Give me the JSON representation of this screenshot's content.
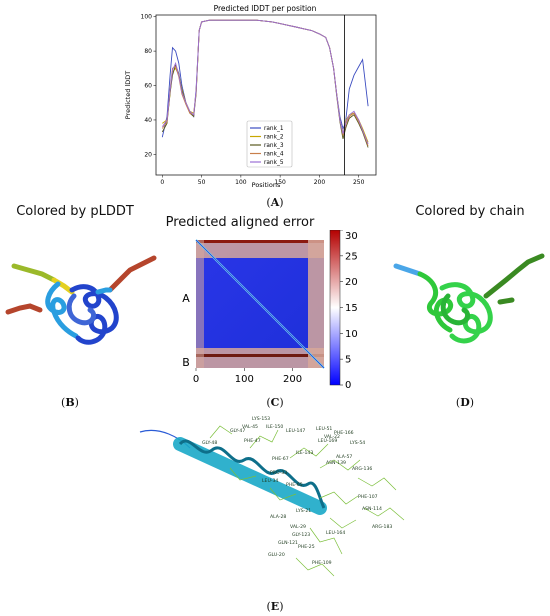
{
  "panels": {
    "a": {
      "caption": "A"
    },
    "b": {
      "title": "Colored by pLDDT",
      "caption": "B"
    },
    "c": {
      "title": "Predicted aligned error",
      "caption": "C"
    },
    "d": {
      "title": "Colored by chain",
      "caption": "D"
    },
    "e": {
      "caption": "E"
    }
  },
  "chart_data": [
    {
      "type": "line",
      "title": "Predicted lDDT per position",
      "xlabel": "Positions",
      "ylabel": "Predicted lDDT",
      "xlim": [
        -8,
        272
      ],
      "ylim": [
        8,
        101
      ],
      "xticks": [
        0,
        50,
        100,
        150,
        200,
        250
      ],
      "yticks": [
        20,
        40,
        60,
        80,
        100
      ],
      "legend": "bottom-center",
      "vline_x": 232,
      "series": [
        {
          "name": "rank_1",
          "color": "#3b4cc0",
          "points": [
            [
              0,
              30
            ],
            [
              6,
              42
            ],
            [
              10,
              66
            ],
            [
              13,
              82
            ],
            [
              17,
              80
            ],
            [
              21,
              73
            ],
            [
              25,
              60
            ],
            [
              30,
              50
            ],
            [
              35,
              45
            ],
            [
              40,
              42
            ],
            [
              43,
              58
            ],
            [
              47,
              92
            ],
            [
              50,
              97
            ],
            [
              60,
              98
            ],
            [
              80,
              98
            ],
            [
              100,
              98
            ],
            [
              120,
              98
            ],
            [
              140,
              97
            ],
            [
              150,
              96
            ],
            [
              160,
              95
            ],
            [
              170,
              94
            ],
            [
              180,
              93
            ],
            [
              190,
              92
            ],
            [
              200,
              90
            ],
            [
              208,
              88
            ],
            [
              213,
              82
            ],
            [
              218,
              70
            ],
            [
              222,
              55
            ],
            [
              226,
              42
            ],
            [
              230,
              35
            ],
            [
              233,
              38
            ],
            [
              238,
              58
            ],
            [
              244,
              66
            ],
            [
              250,
              71
            ],
            [
              255,
              75
            ],
            [
              262,
              48
            ]
          ]
        },
        {
          "name": "rank_2",
          "color": "#c8a800",
          "points": [
            [
              0,
              38
            ],
            [
              6,
              40
            ],
            [
              10,
              55
            ],
            [
              13,
              68
            ],
            [
              17,
              70
            ],
            [
              21,
              66
            ],
            [
              25,
              58
            ],
            [
              30,
              50
            ],
            [
              35,
              45
            ],
            [
              40,
              44
            ],
            [
              43,
              56
            ],
            [
              47,
              92
            ],
            [
              50,
              97
            ],
            [
              60,
              98
            ],
            [
              80,
              98
            ],
            [
              100,
              98
            ],
            [
              120,
              98
            ],
            [
              140,
              97
            ],
            [
              150,
              96
            ],
            [
              160,
              95
            ],
            [
              170,
              94
            ],
            [
              180,
              93
            ],
            [
              190,
              92
            ],
            [
              200,
              90
            ],
            [
              208,
              88
            ],
            [
              213,
              82
            ],
            [
              218,
              70
            ],
            [
              222,
              55
            ],
            [
              226,
              40
            ],
            [
              230,
              32
            ],
            [
              234,
              40
            ],
            [
              238,
              43
            ],
            [
              244,
              44
            ],
            [
              250,
              40
            ],
            [
              255,
              35
            ],
            [
              262,
              27
            ]
          ]
        },
        {
          "name": "rank_3",
          "color": "#5a5a1f",
          "points": [
            [
              0,
              33
            ],
            [
              6,
              38
            ],
            [
              10,
              56
            ],
            [
              13,
              66
            ],
            [
              17,
              72
            ],
            [
              21,
              67
            ],
            [
              25,
              57
            ],
            [
              30,
              50
            ],
            [
              35,
              44
            ],
            [
              40,
              42
            ],
            [
              43,
              55
            ],
            [
              47,
              92
            ],
            [
              50,
              97
            ],
            [
              60,
              98
            ],
            [
              80,
              98
            ],
            [
              100,
              98
            ],
            [
              120,
              98
            ],
            [
              140,
              97
            ],
            [
              150,
              96
            ],
            [
              160,
              95
            ],
            [
              170,
              94
            ],
            [
              180,
              93
            ],
            [
              190,
              92
            ],
            [
              200,
              90
            ],
            [
              208,
              88
            ],
            [
              213,
              82
            ],
            [
              218,
              70
            ],
            [
              222,
              54
            ],
            [
              226,
              39
            ],
            [
              230,
              29
            ],
            [
              234,
              36
            ],
            [
              238,
              41
            ],
            [
              244,
              43
            ],
            [
              250,
              38
            ],
            [
              255,
              33
            ],
            [
              262,
              24
            ]
          ]
        },
        {
          "name": "rank_4",
          "color": "#c87f4a",
          "points": [
            [
              0,
              35
            ],
            [
              6,
              39
            ],
            [
              10,
              58
            ],
            [
              13,
              70
            ],
            [
              17,
              71
            ],
            [
              21,
              65
            ],
            [
              25,
              55
            ],
            [
              30,
              49
            ],
            [
              35,
              44
            ],
            [
              40,
              43
            ],
            [
              43,
              56
            ],
            [
              47,
              92
            ],
            [
              50,
              97
            ],
            [
              60,
              98
            ],
            [
              80,
              98
            ],
            [
              100,
              98
            ],
            [
              120,
              98
            ],
            [
              140,
              97
            ],
            [
              150,
              96
            ],
            [
              160,
              95
            ],
            [
              170,
              94
            ],
            [
              180,
              93
            ],
            [
              190,
              92
            ],
            [
              200,
              90
            ],
            [
              208,
              88
            ],
            [
              213,
              82
            ],
            [
              218,
              70
            ],
            [
              222,
              55
            ],
            [
              226,
              40
            ],
            [
              230,
              31
            ],
            [
              234,
              38
            ],
            [
              238,
              42
            ],
            [
              244,
              44
            ],
            [
              250,
              39
            ],
            [
              255,
              34
            ],
            [
              262,
              25
            ]
          ]
        },
        {
          "name": "rank_5",
          "color": "#9b6fd6",
          "points": [
            [
              0,
              36
            ],
            [
              6,
              40
            ],
            [
              10,
              57
            ],
            [
              13,
              69
            ],
            [
              17,
              73
            ],
            [
              21,
              66
            ],
            [
              25,
              56
            ],
            [
              30,
              50
            ],
            [
              35,
              45
            ],
            [
              40,
              43
            ],
            [
              43,
              57
            ],
            [
              47,
              92
            ],
            [
              50,
              97
            ],
            [
              60,
              98
            ],
            [
              80,
              98
            ],
            [
              100,
              98
            ],
            [
              120,
              98
            ],
            [
              140,
              97
            ],
            [
              150,
              96
            ],
            [
              160,
              95
            ],
            [
              170,
              94
            ],
            [
              180,
              93
            ],
            [
              190,
              92
            ],
            [
              200,
              90
            ],
            [
              208,
              88
            ],
            [
              213,
              82
            ],
            [
              218,
              70
            ],
            [
              222,
              55
            ],
            [
              226,
              40
            ],
            [
              230,
              32
            ],
            [
              234,
              39
            ],
            [
              238,
              43
            ],
            [
              244,
              45
            ],
            [
              250,
              40
            ],
            [
              255,
              34
            ],
            [
              262,
              26
            ]
          ]
        }
      ]
    },
    {
      "type": "heatmap",
      "title": "Predicted aligned error",
      "xticks": [
        0,
        100,
        200
      ],
      "xlim": [
        0,
        265
      ],
      "row_labels": [
        "A",
        "B"
      ],
      "colorbar_ticks": [
        0,
        5,
        10,
        15,
        20,
        25,
        30
      ],
      "colorbar_range": [
        0,
        30
      ],
      "colormap": "bwr"
    }
  ],
  "residue_labels": [
    "LYS-153",
    "VAL-45",
    "ILE-150",
    "GLY-47",
    "PHE-47",
    "GLY-48",
    "LEU-147",
    "PHE-166",
    "LEU-169",
    "VAL-22",
    "LEU-51",
    "LYS-54",
    "ILE-143",
    "ALA-57",
    "PHE-67",
    "PRO-33",
    "ARG-136",
    "ASN-139",
    "LEU-34",
    "PHE-65",
    "ALA-28",
    "VAL-29",
    "GLY-123",
    "GLN-121",
    "PHE-107",
    "ASN-114",
    "LEU-164",
    "ARG-183",
    "LYS-21",
    "PHE-25",
    "GLU-20",
    "PHE-109"
  ]
}
